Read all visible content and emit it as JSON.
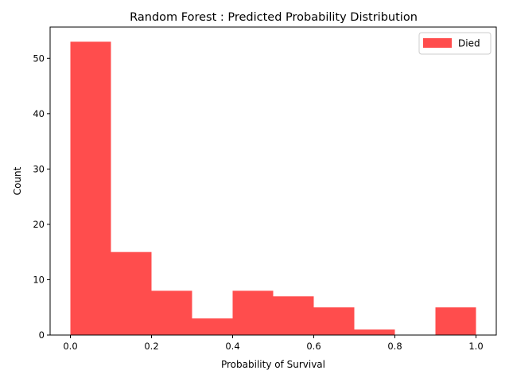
{
  "chart_data": {
    "type": "bar",
    "title": "Random Forest : Predicted Probability Distribution",
    "xlabel": "Probability of Survival",
    "ylabel": "Count",
    "xlim": [
      -0.05,
      1.05
    ],
    "ylim": [
      0,
      55.65
    ],
    "xticks": [
      0.0,
      0.2,
      0.4,
      0.6,
      0.8,
      1.0
    ],
    "xtick_labels": [
      "0.0",
      "0.2",
      "0.4",
      "0.6",
      "0.8",
      "1.0"
    ],
    "yticks": [
      0,
      10,
      20,
      30,
      40,
      50
    ],
    "ytick_labels": [
      "0",
      "10",
      "20",
      "30",
      "40",
      "50"
    ],
    "bin_edges": [
      0.0,
      0.1,
      0.2,
      0.3,
      0.4,
      0.5,
      0.6,
      0.7,
      0.8,
      0.9,
      1.0
    ],
    "series": [
      {
        "name": "Died",
        "color": "#ff4d4d",
        "values": [
          53,
          15,
          8,
          3,
          8,
          7,
          5,
          1,
          0,
          5
        ]
      }
    ],
    "legend": {
      "position": "top-right",
      "label": "Died"
    },
    "grid": false
  }
}
